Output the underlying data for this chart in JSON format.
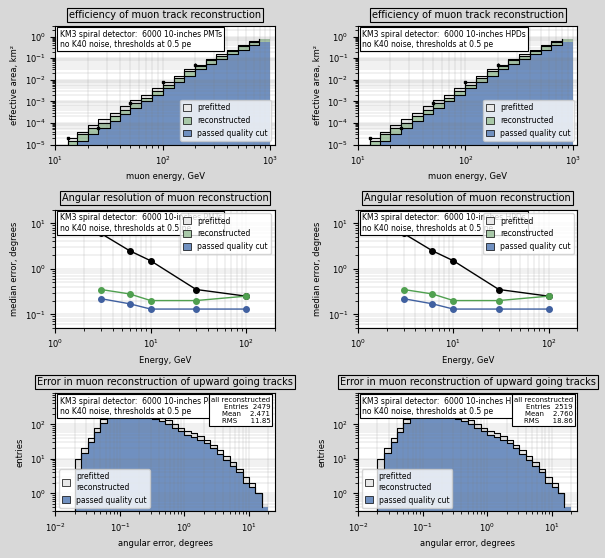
{
  "subplot_titles": [
    "efficiency of muon track reconstruction",
    "efficiency of muon track reconstruction",
    "Angular resolution of muon reconstruction",
    "Angular resolution of muon reconstruction",
    "Error in muon reconstruction of upward going tracks",
    "Error in muon reconstruction of upward going tracks"
  ],
  "detector_labels": [
    "KM3 spiral detector:  6000 10-inches PMTs",
    "KM3 spiral detector:  6000 10-inches HPDs",
    "KM3 spiral detector:  6000 10-inches PMTs",
    "KM3 spiral detector:  6000 10-inches HPDs",
    "KM3 spiral detector:  6000 10-inches PMTs",
    "KM3 spiral detector:  6000 10-inches HPDs"
  ],
  "noise_labels": [
    "no K40 noise, thresholds at 0.5 pe",
    "no K40 noise, thresholds at 0.5 pe",
    "no K40 noise, thresholds at 0.5 pe",
    "no K40 noise, thresholds at 0.5 pe",
    "no K40 noise, thresholds at 0.5 pe",
    "no K40 noise, thresholds at 0.5 pe"
  ],
  "eff_energy_bins": [
    10,
    13,
    16,
    20,
    25,
    32,
    40,
    50,
    63,
    79,
    100,
    126,
    158,
    200,
    251,
    316,
    398,
    501,
    631,
    794,
    1000
  ],
  "eff_prefitted_pmt": [
    1e-05,
    2e-05,
    4e-05,
    8e-05,
    0.00015,
    0.0003,
    0.0006,
    0.0012,
    0.002,
    0.004,
    0.008,
    0.015,
    0.03,
    0.05,
    0.09,
    0.15,
    0.25,
    0.4,
    0.6,
    0.8,
    1.0
  ],
  "eff_reconstructed_pmt": [
    5e-06,
    1.5e-05,
    3e-05,
    6e-05,
    0.0001,
    0.0002,
    0.0004,
    0.0008,
    0.0015,
    0.003,
    0.006,
    0.012,
    0.025,
    0.045,
    0.08,
    0.13,
    0.22,
    0.35,
    0.55,
    0.75,
    0.95
  ],
  "eff_quality_pmt": [
    3e-06,
    8e-06,
    1.5e-05,
    3e-05,
    6e-05,
    0.00012,
    0.00025,
    0.0005,
    0.001,
    0.002,
    0.004,
    0.008,
    0.015,
    0.03,
    0.055,
    0.09,
    0.15,
    0.25,
    0.4,
    0.55,
    0.7
  ],
  "eff_prefitted_hpd": [
    1e-05,
    2e-05,
    4e-05,
    8e-05,
    0.00015,
    0.0003,
    0.0006,
    0.0012,
    0.002,
    0.004,
    0.008,
    0.015,
    0.03,
    0.05,
    0.09,
    0.15,
    0.25,
    0.4,
    0.6,
    0.8,
    1.0
  ],
  "eff_reconstructed_hpd": [
    5e-06,
    1.5e-05,
    3e-05,
    6e-05,
    0.0001,
    0.0002,
    0.0004,
    0.0008,
    0.0015,
    0.003,
    0.006,
    0.012,
    0.025,
    0.045,
    0.08,
    0.13,
    0.22,
    0.35,
    0.55,
    0.75,
    0.95
  ],
  "eff_quality_hpd": [
    3e-06,
    8e-06,
    1.5e-05,
    3e-05,
    6e-05,
    0.00012,
    0.00025,
    0.0005,
    0.001,
    0.002,
    0.004,
    0.008,
    0.015,
    0.03,
    0.055,
    0.09,
    0.15,
    0.25,
    0.4,
    0.55,
    0.7
  ],
  "ang_energy_pmt": [
    3,
    6,
    10,
    30,
    100
  ],
  "ang_prefitted_pmt": [
    6,
    2.5,
    1.5,
    0.35,
    0.25
  ],
  "ang_reconstructed_pmt": [
    0.35,
    0.28,
    0.2,
    0.2,
    0.25
  ],
  "ang_quality_pmt": [
    0.22,
    0.17,
    0.13,
    0.13,
    0.13
  ],
  "ang_energy_hpd": [
    3,
    6,
    10,
    30,
    100
  ],
  "ang_prefitted_hpd": [
    6,
    2.5,
    1.5,
    0.35,
    0.25
  ],
  "ang_reconstructed_hpd": [
    0.35,
    0.28,
    0.2,
    0.2,
    0.25
  ],
  "ang_quality_hpd": [
    0.22,
    0.17,
    0.13,
    0.13,
    0.13
  ],
  "hist_bins": [
    0.01,
    0.013,
    0.016,
    0.02,
    0.025,
    0.032,
    0.04,
    0.05,
    0.063,
    0.079,
    0.1,
    0.126,
    0.158,
    0.2,
    0.251,
    0.316,
    0.398,
    0.501,
    0.631,
    0.794,
    1.0,
    1.26,
    1.58,
    2.0,
    2.51,
    3.16,
    3.98,
    5.01,
    6.31,
    7.94,
    10.0,
    12.6,
    15.8,
    20.0
  ],
  "hist_prefitted_pmt": [
    0,
    0,
    0,
    10,
    20,
    40,
    80,
    140,
    200,
    280,
    360,
    380,
    320,
    250,
    200,
    170,
    150,
    130,
    100,
    80,
    65,
    55,
    45,
    35,
    25,
    18,
    12,
    8,
    5,
    3,
    2,
    1,
    0.5
  ],
  "hist_quality_pmt": [
    0,
    0,
    0,
    5,
    15,
    30,
    60,
    110,
    160,
    220,
    280,
    290,
    250,
    200,
    160,
    140,
    120,
    100,
    80,
    65,
    50,
    42,
    35,
    28,
    20,
    14,
    9,
    6,
    4,
    2,
    1.5,
    1,
    0.4
  ],
  "hist_prefitted_hpd": [
    0,
    0,
    0,
    10,
    20,
    40,
    80,
    140,
    200,
    280,
    360,
    380,
    320,
    250,
    200,
    170,
    150,
    130,
    100,
    80,
    65,
    55,
    45,
    35,
    25,
    18,
    12,
    8,
    5,
    3,
    2,
    1,
    0.5
  ],
  "hist_quality_hpd": [
    0,
    0,
    0,
    5,
    15,
    30,
    60,
    110,
    160,
    220,
    280,
    290,
    250,
    200,
    160,
    140,
    120,
    100,
    80,
    65,
    50,
    42,
    35,
    28,
    20,
    14,
    9,
    6,
    4,
    2,
    1.5,
    1,
    0.4
  ],
  "pmt_stats": {
    "entries": 2479,
    "mean": 2.471,
    "rms": 11.85
  },
  "hpd_stats": {
    "entries": 2519,
    "mean": 2.76,
    "rms": 18.86
  },
  "color_prefitted": "#e8e8e8",
  "color_reconstructed": "#a8c8a8",
  "color_quality": "#7090c0",
  "color_reconstructed_line": "#50a050",
  "color_quality_line": "#4060a0",
  "bg_color": "#d8d8d8",
  "plot_bg": "#ffffff"
}
